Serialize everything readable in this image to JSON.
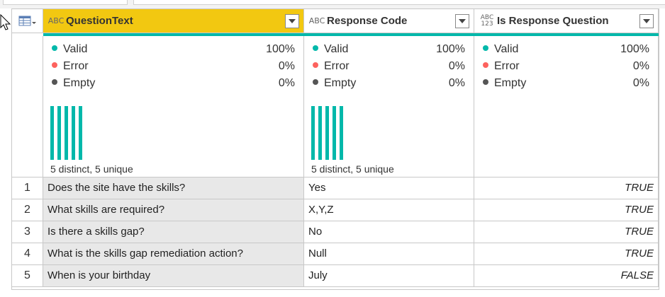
{
  "columns": [
    {
      "type_icon": "ABC",
      "title": "QuestionText",
      "selected": true
    },
    {
      "type_icon": "ABC",
      "title": "Response Code",
      "selected": false
    },
    {
      "type_icon": "ABC\n123",
      "title": "Is Response Question",
      "selected": false
    }
  ],
  "profile": [
    {
      "valid_label": "Valid",
      "valid_pct": "100%",
      "error_label": "Error",
      "error_pct": "0%",
      "empty_label": "Empty",
      "empty_pct": "0%",
      "distinct": "5 distinct, 5 unique"
    },
    {
      "valid_label": "Valid",
      "valid_pct": "100%",
      "error_label": "Error",
      "error_pct": "0%",
      "empty_label": "Empty",
      "empty_pct": "0%",
      "distinct": "5 distinct, 5 unique"
    },
    {
      "valid_label": "Valid",
      "valid_pct": "100%",
      "error_label": "Error",
      "error_pct": "0%",
      "empty_label": "Empty",
      "empty_pct": "0%",
      "distinct": ""
    }
  ],
  "rows": [
    {
      "n": "1",
      "question": "Does the site have the skills?",
      "code": "Yes",
      "is_resp": "TRUE"
    },
    {
      "n": "2",
      "question": "What skills are required?",
      "code": "X,Y,Z",
      "is_resp": "TRUE"
    },
    {
      "n": "3",
      "question": "Is there a skills gap?",
      "code": "No",
      "is_resp": "TRUE"
    },
    {
      "n": "4",
      "question": "What is the skills gap remediation action?",
      "code": "Null",
      "is_resp": "TRUE"
    },
    {
      "n": "5",
      "question": "When is your birthday",
      "code": "July",
      "is_resp": "FALSE"
    }
  ],
  "colors": {
    "accent": "#f2c811",
    "teal": "#01b8aa",
    "valid": "#01b8aa",
    "error": "#fd625e",
    "empty": "#555555"
  }
}
